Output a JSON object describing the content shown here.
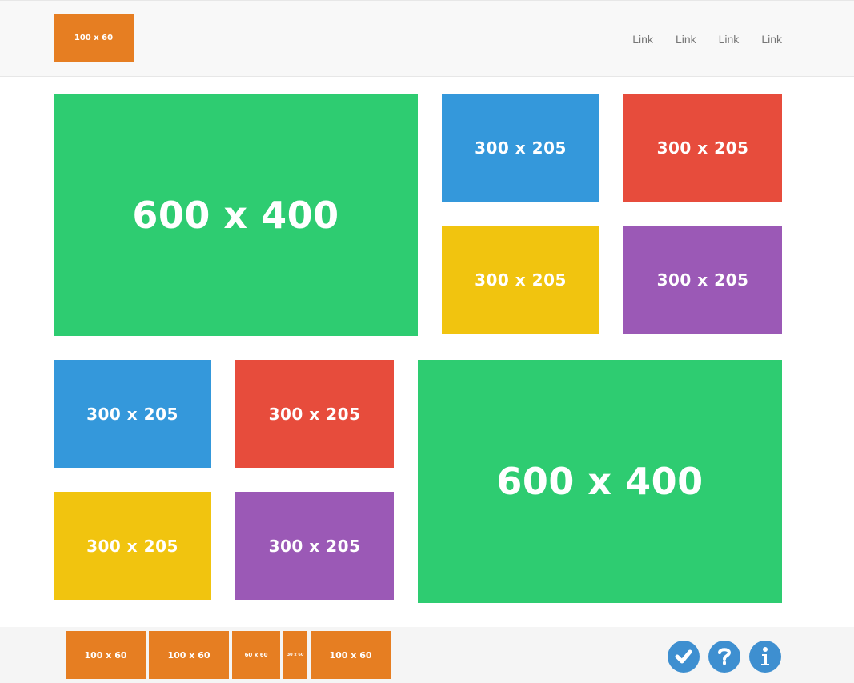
{
  "header": {
    "logo": "100 x 60",
    "nav": [
      "Link",
      "Link",
      "Link",
      "Link"
    ]
  },
  "grid": {
    "big1": "600 x 400",
    "small": [
      "300 x 205",
      "300 x 205",
      "300 x 205",
      "300 x 205"
    ],
    "small2": [
      "300 x 205",
      "300 x 205",
      "300 x 205",
      "300 x 205"
    ],
    "big2": "600 x 400"
  },
  "footer": {
    "thumbs": [
      "100 x 60",
      "100 x 60",
      "60 x 60",
      "30 x 60",
      "100 x 60"
    ],
    "icons": [
      "check-icon",
      "question-icon",
      "info-icon"
    ]
  },
  "colors": {
    "green": "#2ecc71",
    "blue": "#3498db",
    "red": "#e74c3c",
    "yellow": "#f1c40f",
    "purple": "#9b59b6",
    "orange": "#e67e22"
  }
}
